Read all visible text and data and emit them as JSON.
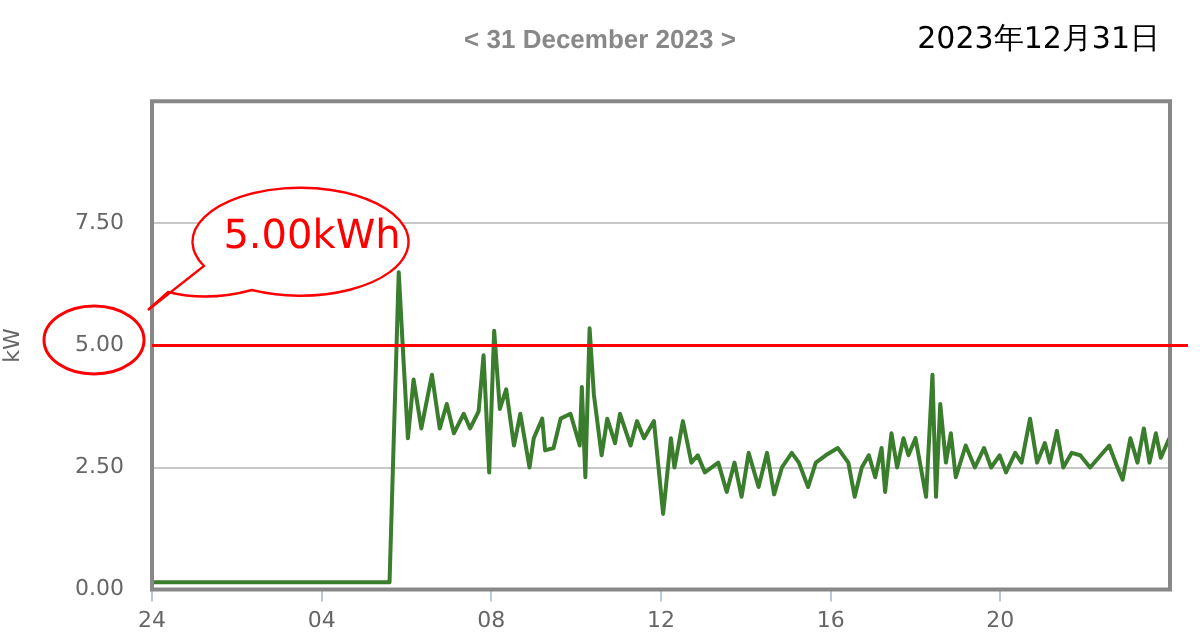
{
  "chart_data": {
    "type": "line",
    "title": "< 31 December 2023 >",
    "subtitle": "2023年12月31日",
    "ylabel": "kW",
    "xlim": [
      "2023-12-31T00:00",
      "2024-01-01T00:00"
    ],
    "xticks": [
      {
        "value": "2023-12-31T00:00",
        "label": "24"
      },
      {
        "value": "2023-12-31T04:00",
        "label": "04"
      },
      {
        "value": "2023-12-31T08:00",
        "label": "08"
      },
      {
        "value": "2023-12-31T12:00",
        "label": "12"
      },
      {
        "value": "2023-12-31T16:00",
        "label": "16"
      },
      {
        "value": "2023-12-31T20:00",
        "label": "20"
      }
    ],
    "ylim": [
      0,
      10
    ],
    "yticks": [
      {
        "value": 0,
        "label": "0.00"
      },
      {
        "value": 2.5,
        "label": "2.50"
      },
      {
        "value": 5,
        "label": "5.00"
      },
      {
        "value": 7.5,
        "label": "7.50"
      }
    ],
    "grid": "y",
    "legend": false,
    "marker": "none",
    "ref_lines": [
      {
        "axis": "y",
        "value": 5,
        "label": "5.00kWh",
        "color": "#ff0000"
      }
    ],
    "series": [
      {
        "color": "#3a7d2c",
        "x": [
          "2023-12-31T00:00",
          "2023-12-31T01:00",
          "2023-12-31T02:00",
          "2023-12-31T03:00",
          "2023-12-31T04:00",
          "2023-12-31T05:00",
          "2023-12-31T05:36",
          "2023-12-31T05:49",
          "2023-12-31T05:55",
          "2023-12-31T06:02",
          "2023-12-31T06:10",
          "2023-12-31T06:21",
          "2023-12-31T06:36",
          "2023-12-31T06:47",
          "2023-12-31T06:57",
          "2023-12-31T07:07",
          "2023-12-31T07:21",
          "2023-12-31T07:30",
          "2023-12-31T07:42",
          "2023-12-31T07:49",
          "2023-12-31T07:57",
          "2023-12-31T08:04",
          "2023-12-31T08:12",
          "2023-12-31T08:21",
          "2023-12-31T08:32",
          "2023-12-31T08:41",
          "2023-12-31T08:54",
          "2023-12-31T09:00",
          "2023-12-31T09:12",
          "2023-12-31T09:16",
          "2023-12-31T09:28",
          "2023-12-31T09:38",
          "2023-12-31T09:52",
          "2023-12-31T10:05",
          "2023-12-31T10:08",
          "2023-12-31T10:13",
          "2023-12-31T10:19",
          "2023-12-31T10:25",
          "2023-12-31T10:36",
          "2023-12-31T10:44",
          "2023-12-31T10:55",
          "2023-12-31T11:02",
          "2023-12-31T11:17",
          "2023-12-31T11:26",
          "2023-12-31T11:36",
          "2023-12-31T11:50",
          "2023-12-31T12:03",
          "2023-12-31T12:14",
          "2023-12-31T12:19",
          "2023-12-31T12:31",
          "2023-12-31T12:43",
          "2023-12-31T12:52",
          "2023-12-31T13:02",
          "2023-12-31T13:21",
          "2023-12-31T13:33",
          "2023-12-31T13:44",
          "2023-12-31T13:54",
          "2023-12-31T14:04",
          "2023-12-31T14:18",
          "2023-12-31T14:30",
          "2023-12-31T14:40",
          "2023-12-31T14:51",
          "2023-12-31T15:05",
          "2023-12-31T15:15",
          "2023-12-31T15:28",
          "2023-12-31T15:39",
          "2023-12-31T15:53",
          "2023-12-31T16:10",
          "2023-12-31T16:25",
          "2023-12-31T16:34",
          "2023-12-31T16:44",
          "2023-12-31T16:54",
          "2023-12-31T17:03",
          "2023-12-31T17:12",
          "2023-12-31T17:17",
          "2023-12-31T17:26",
          "2023-12-31T17:34",
          "2023-12-31T17:43",
          "2023-12-31T17:50",
          "2023-12-31T18:00",
          "2023-12-31T18:15",
          "2023-12-31T18:24",
          "2023-12-31T18:29",
          "2023-12-31T18:35",
          "2023-12-31T18:43",
          "2023-12-31T18:50",
          "2023-12-31T18:57",
          "2023-12-31T19:11",
          "2023-12-31T19:24",
          "2023-12-31T19:37",
          "2023-12-31T19:47",
          "2023-12-31T19:59",
          "2023-12-31T20:08",
          "2023-12-31T20:21",
          "2023-12-31T20:30",
          "2023-12-31T20:42",
          "2023-12-31T20:52",
          "2023-12-31T21:03",
          "2023-12-31T21:10",
          "2023-12-31T21:20",
          "2023-12-31T21:29",
          "2023-12-31T21:41",
          "2023-12-31T21:53",
          "2023-12-31T22:07",
          "2023-12-31T22:22",
          "2023-12-31T22:34",
          "2023-12-31T22:43",
          "2023-12-31T22:53",
          "2023-12-31T23:04",
          "2023-12-31T23:14",
          "2023-12-31T23:23",
          "2023-12-31T23:31",
          "2023-12-31T23:40",
          "2023-12-31T23:47",
          "2023-12-31T23:59"
        ],
        "values": [
          0.15,
          0.15,
          0.15,
          0.15,
          0.15,
          0.15,
          0.15,
          6.5,
          4.9,
          3.1,
          4.3,
          3.3,
          4.4,
          3.3,
          3.8,
          3.2,
          3.6,
          3.3,
          3.65,
          4.8,
          2.4,
          5.3,
          3.7,
          4.1,
          2.95,
          3.6,
          2.5,
          3.1,
          3.5,
          2.85,
          2.9,
          3.5,
          3.6,
          2.95,
          4.15,
          2.3,
          5.35,
          4.0,
          2.75,
          3.5,
          3.0,
          3.6,
          2.95,
          3.45,
          3.1,
          3.45,
          1.55,
          3.1,
          2.5,
          3.45,
          2.6,
          2.75,
          2.4,
          2.6,
          2.0,
          2.6,
          1.9,
          2.8,
          2.1,
          2.8,
          1.95,
          2.5,
          2.8,
          2.6,
          2.1,
          2.6,
          2.75,
          2.9,
          2.6,
          1.9,
          2.5,
          2.75,
          2.3,
          2.9,
          2.0,
          3.2,
          2.5,
          3.1,
          2.75,
          3.1,
          1.9,
          4.4,
          1.9,
          3.8,
          2.6,
          3.2,
          2.3,
          2.95,
          2.5,
          2.9,
          2.5,
          2.75,
          2.4,
          2.8,
          2.6,
          3.5,
          2.6,
          3.0,
          2.6,
          3.25,
          2.5,
          2.8,
          2.75,
          2.5,
          2.75,
          2.95,
          2.6,
          2.25,
          3.1,
          2.6,
          3.3,
          2.6,
          3.2,
          2.7,
          3.1
        ]
      }
    ]
  }
}
